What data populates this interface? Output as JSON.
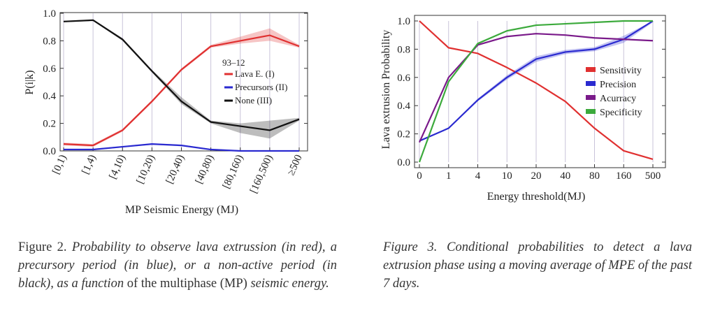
{
  "chart_data": [
    {
      "type": "line",
      "ylabel": "P(i|k)",
      "xlabel": "MP Seismic Energy (MJ)",
      "categories": [
        "[0,1)",
        "[1,4)",
        "[4,10)",
        "[10,20)",
        "[20,40)",
        "[40,80)",
        "[80,160)",
        "[160,500)",
        "≥500"
      ],
      "ylim": [
        0,
        1.0
      ],
      "yticks": [
        "0.0",
        "0.2",
        "0.4",
        "0.6",
        "0.8",
        "1.0"
      ],
      "legend_title": "93–12",
      "legend_position": "center-right",
      "grid": "vertical",
      "series": [
        {
          "name": "Lava E. (I)",
          "color": "#e03030",
          "values": [
            0.05,
            0.04,
            0.15,
            0.36,
            0.59,
            0.76,
            0.8,
            0.84,
            0.76
          ],
          "lower": [
            0.04,
            0.03,
            0.14,
            0.35,
            0.58,
            0.75,
            0.78,
            0.8,
            0.75
          ],
          "upper": [
            0.06,
            0.05,
            0.16,
            0.37,
            0.6,
            0.77,
            0.83,
            0.89,
            0.77
          ]
        },
        {
          "name": "Precursors (II)",
          "color": "#2a2ad0",
          "values": [
            0.01,
            0.01,
            0.03,
            0.05,
            0.04,
            0.01,
            0.0,
            0.0,
            0.0
          ],
          "lower": [
            0.005,
            0.005,
            0.025,
            0.045,
            0.035,
            0.005,
            0.0,
            0.0,
            0.0
          ],
          "upper": [
            0.015,
            0.015,
            0.035,
            0.055,
            0.045,
            0.015,
            0.005,
            0.005,
            0.005
          ]
        },
        {
          "name": "None (III)",
          "color": "#111111",
          "values": [
            0.94,
            0.95,
            0.81,
            0.58,
            0.36,
            0.21,
            0.18,
            0.15,
            0.23
          ],
          "lower": [
            0.935,
            0.945,
            0.8,
            0.57,
            0.34,
            0.2,
            0.13,
            0.09,
            0.22
          ],
          "upper": [
            0.945,
            0.955,
            0.82,
            0.59,
            0.39,
            0.22,
            0.2,
            0.22,
            0.24
          ]
        }
      ]
    },
    {
      "type": "line",
      "ylabel": "Lava extrusion Probability",
      "xlabel": "Energy threshold(MJ)",
      "categories": [
        "0",
        "1",
        "4",
        "10",
        "20",
        "40",
        "80",
        "160",
        "500"
      ],
      "ylim": [
        0,
        1.0
      ],
      "yticks": [
        "0.0",
        "0.2",
        "0.4",
        "0.6",
        "0.8",
        "1.0"
      ],
      "legend_position": "center-right",
      "grid": "vertical",
      "series": [
        {
          "name": "Sensitivity",
          "color": "#e03030",
          "values": [
            1.0,
            0.81,
            0.77,
            0.67,
            0.56,
            0.43,
            0.24,
            0.08,
            0.02
          ]
        },
        {
          "name": "Precision",
          "color": "#2a2ad0",
          "values": [
            0.15,
            0.24,
            0.44,
            0.6,
            0.73,
            0.78,
            0.8,
            0.87,
            1.0
          ],
          "lower": [
            0.145,
            0.235,
            0.43,
            0.585,
            0.71,
            0.765,
            0.785,
            0.845,
            0.99
          ],
          "upper": [
            0.155,
            0.245,
            0.45,
            0.615,
            0.75,
            0.795,
            0.815,
            0.895,
            1.0
          ]
        },
        {
          "name": "Acurracy",
          "color": "#7a1a8a",
          "values": [
            0.14,
            0.6,
            0.83,
            0.89,
            0.91,
            0.9,
            0.88,
            0.87,
            0.86
          ]
        },
        {
          "name": "Specificity",
          "color": "#3caa3c",
          "values": [
            0.0,
            0.57,
            0.84,
            0.93,
            0.97,
            0.98,
            0.99,
            1.0,
            1.0
          ]
        }
      ]
    }
  ],
  "captions": {
    "fig2": {
      "label": "Figure 2.",
      "body_italic": "Probability to observe lava extrussion (in red), a precursory period (in blue), or a non-active period (in black), as a",
      "italic_function": "function",
      "plain": "of the multiphase (MP)",
      "italic_tail": "seismic energy."
    },
    "fig3": {
      "text": "Figure 3. Conditional probabilities to detect a lava extrusion phase using a moving average of MPE of the past 7 days."
    }
  }
}
